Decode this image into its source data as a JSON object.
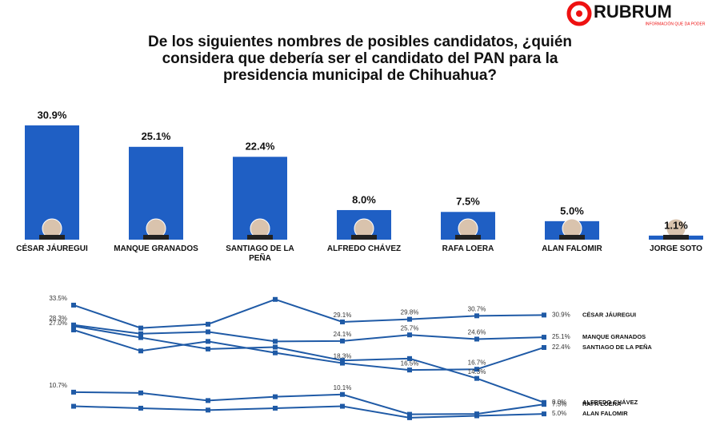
{
  "header": {
    "logo": "RUBRUM",
    "tagline": "INFORMACIÓN QUE DA PODER"
  },
  "chart_data": [
    {
      "type": "bar",
      "title": [
        "De los siguientes nombres de posibles candidatos, ¿quién",
        "considera que debería ser el candidato del PAN para la",
        "presidencia municipal de Chihuahua?"
      ],
      "categories": [
        "CÉSAR JÁUREGUI",
        "MANQUE GRANADOS",
        "SANTIAGO DE LA PEÑA",
        "ALFREDO CHÁVEZ",
        "RAFA LOERA",
        "ALAN FALOMIR",
        "JORGE SOTO"
      ],
      "values": [
        30.9,
        25.1,
        22.4,
        8.0,
        7.5,
        5.0,
        1.1
      ],
      "value_labels": [
        "30.9%",
        "25.1%",
        "22.4%",
        "8.0%",
        "7.5%",
        "5.0%",
        "1.1%"
      ],
      "color": "#1f5fc4",
      "ylim": [
        0,
        32.4
      ]
    },
    {
      "type": "line",
      "categories": [
        null,
        null,
        null,
        null,
        null,
        null,
        null,
        null
      ],
      "ylim": [
        0,
        36
      ],
      "series": [
        {
          "name": "CÉSAR JÁUREGUI",
          "color": "#1f5aa6",
          "values": [
            33.5,
            27.5,
            28.5,
            35.0,
            29.1,
            29.8,
            30.7,
            30.9
          ],
          "value_labels": [
            "33.5%",
            null,
            null,
            null,
            "29.1%",
            "29.8%",
            "30.7%",
            "30.9%"
          ]
        },
        {
          "name": "MANQUE GRANADOS",
          "color": "#1f5aa6",
          "values": [
            28.3,
            26.0,
            26.5,
            24.0,
            24.1,
            25.7,
            24.6,
            25.1
          ],
          "value_labels": [
            "28.3%",
            null,
            null,
            null,
            "24.1%",
            "25.7%",
            "24.6%",
            "25.1%"
          ]
        },
        {
          "name": "SANTIAGO DE LA PEÑA",
          "color": "#1f5aa6",
          "values": [
            27.0,
            21.5,
            24.0,
            21.0,
            18.3,
            16.5,
            16.7,
            22.4
          ],
          "value_labels": [
            "27.0%",
            null,
            null,
            null,
            "18.3%",
            "16.5%",
            "16.7%",
            "22.4%"
          ]
        },
        {
          "name": "ALFREDO CHÁVEZ",
          "color": "#1f5aa6",
          "values": [
            28.0,
            25.0,
            22.0,
            22.5,
            19.0,
            19.5,
            14.3,
            8.0
          ],
          "value_labels": [
            null,
            null,
            null,
            null,
            null,
            null,
            "14.3%",
            "8.0%"
          ]
        },
        {
          "name": "RAFA LOERA",
          "color": "#1f5aa6",
          "values": [
            10.7,
            10.5,
            8.5,
            9.5,
            10.1,
            4.9,
            5.0,
            7.5
          ],
          "value_labels": [
            "10.7%",
            null,
            null,
            null,
            "10.1%",
            null,
            null,
            "7.5%"
          ]
        },
        {
          "name": "ALAN FALOMIR",
          "color": "#1f5aa6",
          "values": [
            7.0,
            6.5,
            6.0,
            6.5,
            7.0,
            4.0,
            4.5,
            5.0
          ],
          "value_labels": [
            null,
            null,
            null,
            null,
            null,
            null,
            null,
            "5.0%"
          ]
        }
      ]
    }
  ]
}
